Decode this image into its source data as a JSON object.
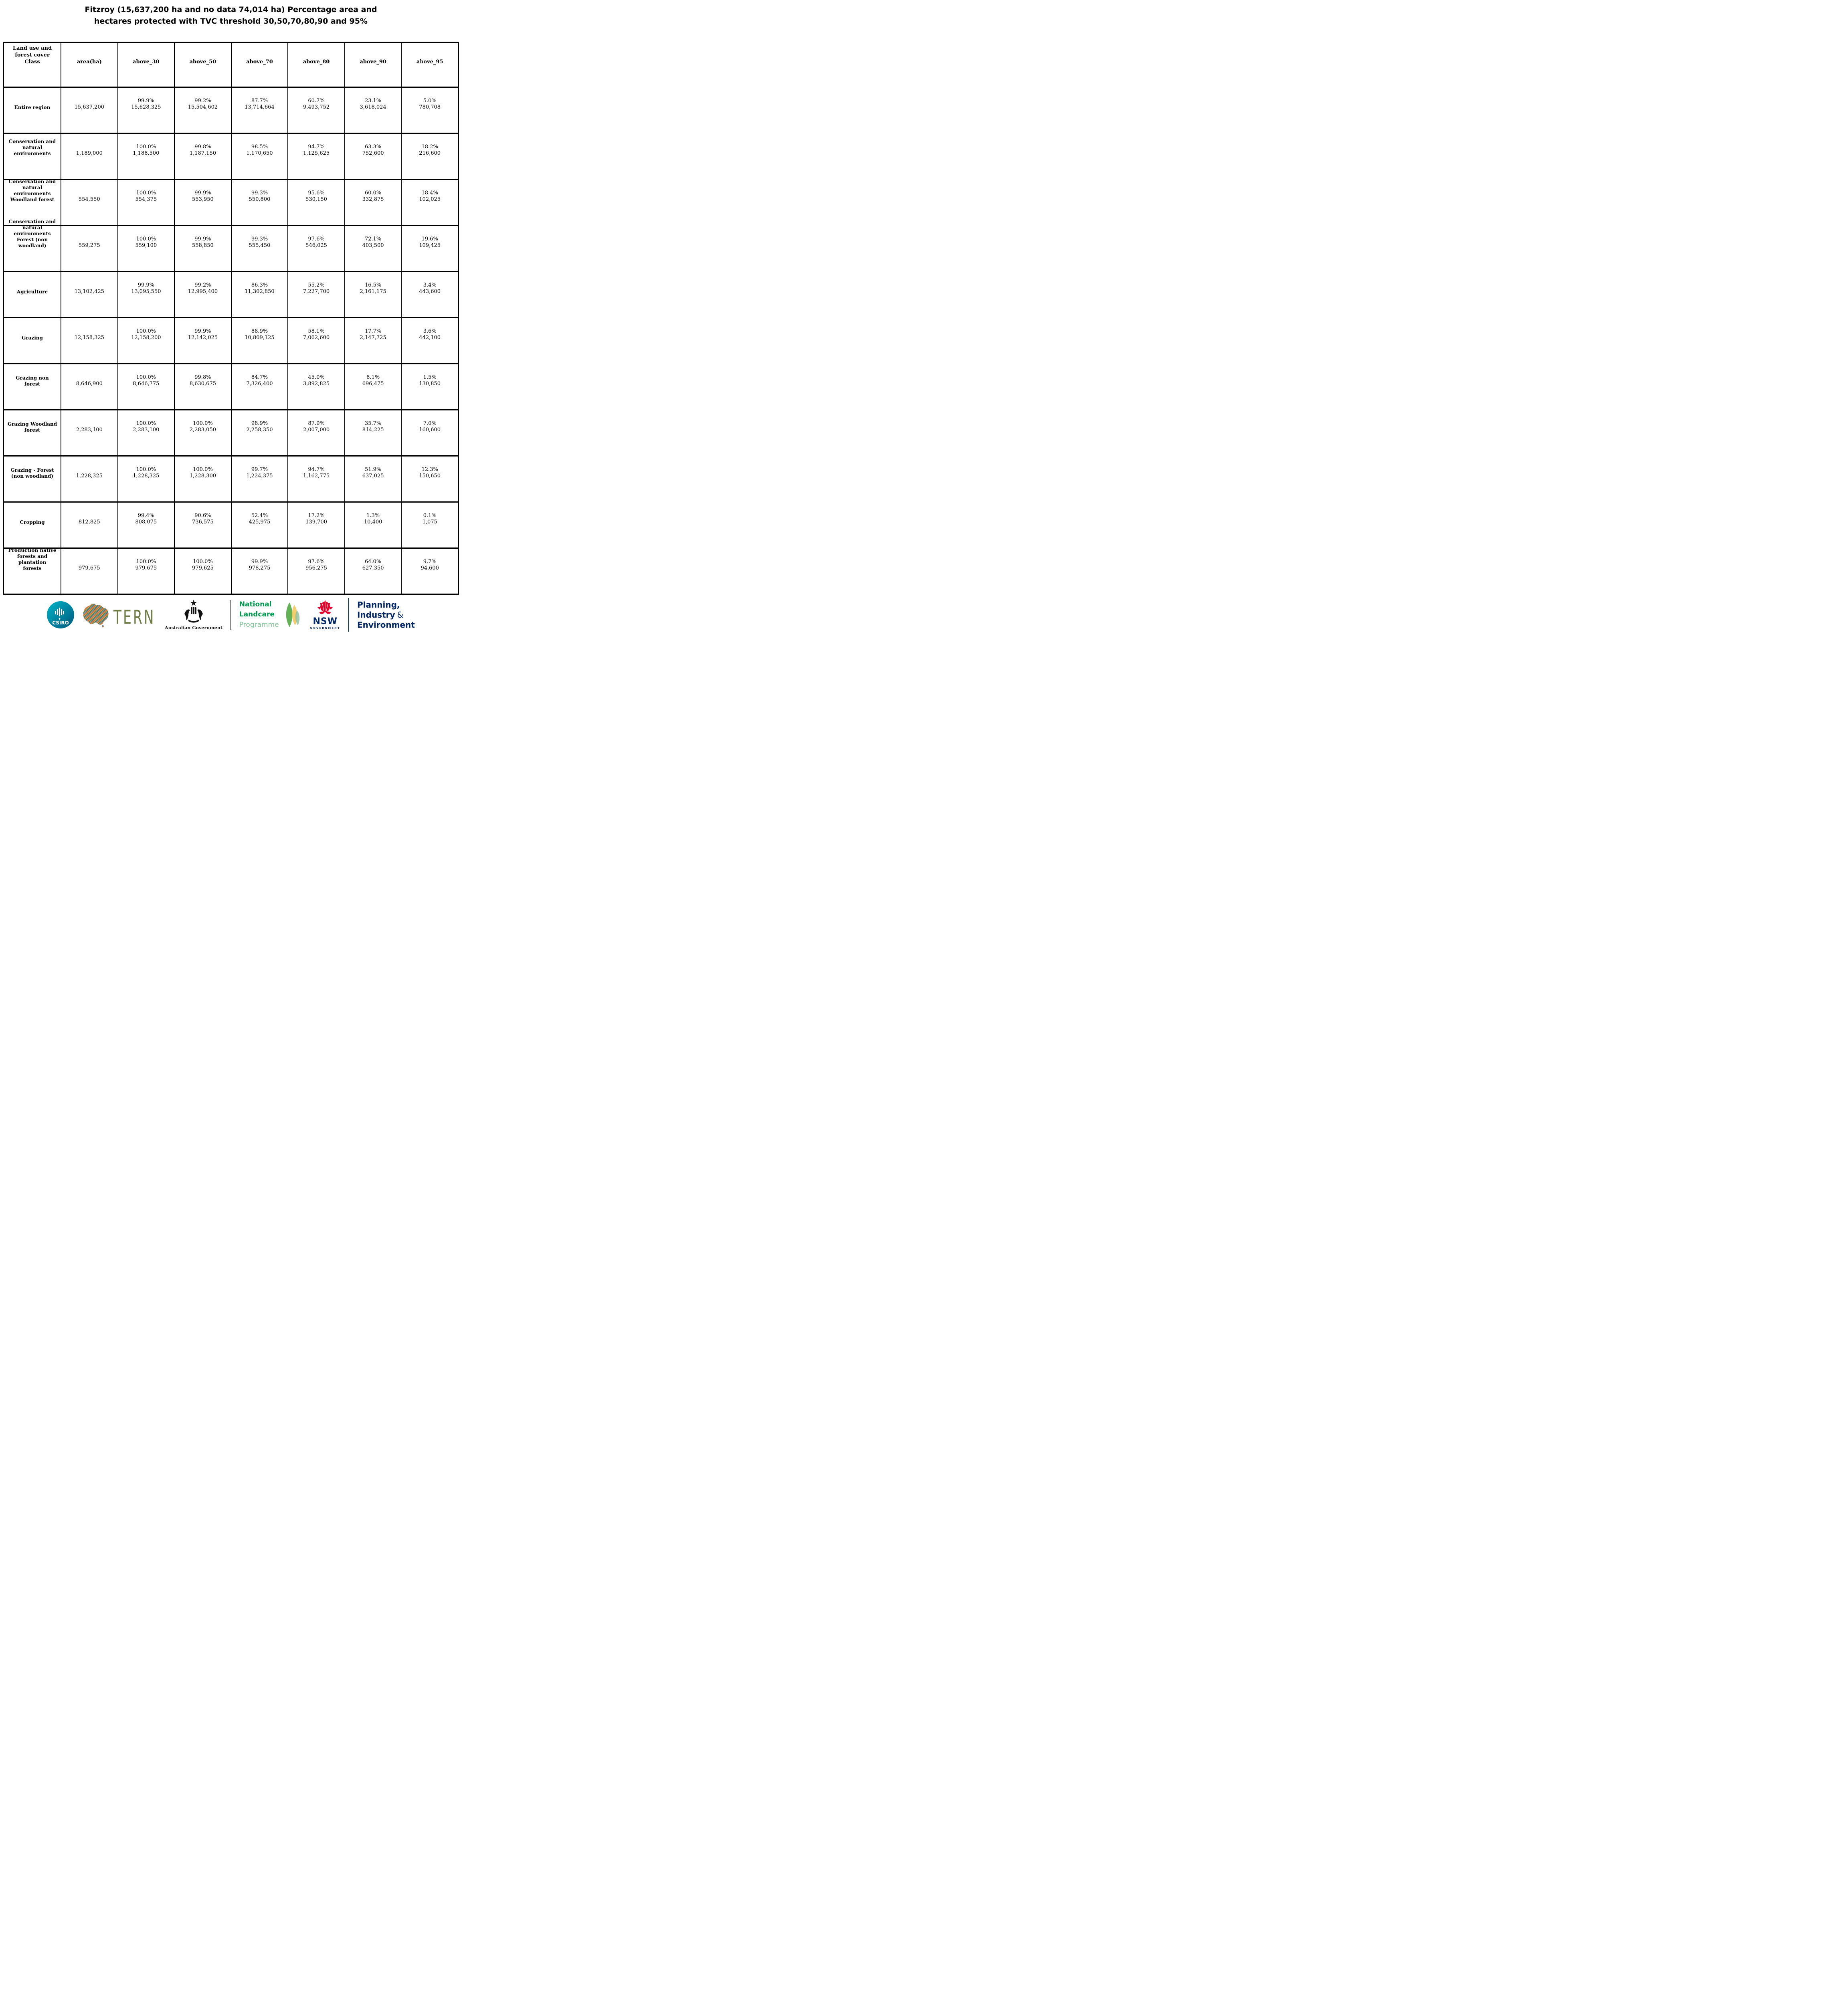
{
  "title": {
    "line1": "Fitzroy (15,637,200 ha and no data 74,014 ha) Percentage area and",
    "line2": "hectares protected with TVC threshold 30,50,70,80,90 and 95%"
  },
  "table": {
    "columns": [
      [
        "Land use and",
        "forest cover",
        "Class"
      ],
      [
        "area(ha)"
      ],
      [
        "above_30"
      ],
      [
        "above_50"
      ],
      [
        "above_70"
      ],
      [
        "above_80"
      ],
      [
        "above_90"
      ],
      [
        "above_95"
      ]
    ],
    "rows": [
      {
        "label_lines": [
          "Entire region"
        ],
        "area": "15,637,200",
        "pct": [
          "99.9%",
          "99.2%",
          "87.7%",
          "60.7%",
          "23.1%",
          "5.0%"
        ],
        "val": [
          "15,628,325",
          "15,504,602",
          "13,714,664",
          "9,493,752",
          "3,618,024",
          "780,708"
        ]
      },
      {
        "label_lines": [
          "Conservation and",
          "natural",
          "environments"
        ],
        "area": "1,189,000",
        "pct": [
          "100.0%",
          "99.8%",
          "98.5%",
          "94.7%",
          "63.3%",
          "18.2%"
        ],
        "val": [
          "1,188,500",
          "1,187,150",
          "1,170,650",
          "1,125,625",
          "752,600",
          "216,600"
        ]
      },
      {
        "label_lines": [
          "Conservation and",
          "natural",
          "environments",
          "Woodland forest"
        ],
        "area": "554,550",
        "pct": [
          "100.0%",
          "99.9%",
          "99.3%",
          "95.6%",
          "60.0%",
          "18.4%"
        ],
        "val": [
          "554,375",
          "553,950",
          "550,800",
          "530,150",
          "332,875",
          "102,025"
        ]
      },
      {
        "label_lines": [
          "Conservation and",
          "natural",
          "environments",
          "Forest (non",
          "woodland)"
        ],
        "area": "559,275",
        "pct": [
          "100.0%",
          "99.9%",
          "99.3%",
          "97.6%",
          "72.1%",
          "19.6%"
        ],
        "val": [
          "559,100",
          "558,850",
          "555,450",
          "546,025",
          "403,500",
          "109,425"
        ]
      },
      {
        "label_lines": [
          "Agriculture"
        ],
        "area": "13,102,425",
        "pct": [
          "99.9%",
          "99.2%",
          "86.3%",
          "55.2%",
          "16.5%",
          "3.4%"
        ],
        "val": [
          "13,095,550",
          "12,995,400",
          "11,302,850",
          "7,227,700",
          "2,161,175",
          "443,600"
        ]
      },
      {
        "label_lines": [
          "Grazing"
        ],
        "area": "12,158,325",
        "pct": [
          "100.0%",
          "99.9%",
          "88.9%",
          "58.1%",
          "17.7%",
          "3.6%"
        ],
        "val": [
          "12,158,200",
          "12,142,025",
          "10,809,125",
          "7,062,600",
          "2,147,725",
          "442,100"
        ]
      },
      {
        "label_lines": [
          "Grazing non",
          "forest"
        ],
        "area": "8,646,900",
        "pct": [
          "100.0%",
          "99.8%",
          "84.7%",
          "45.0%",
          "8.1%",
          "1.5%"
        ],
        "val": [
          "8,646,775",
          "8,630,675",
          "7,326,400",
          "3,892,825",
          "696,475",
          "130,850"
        ]
      },
      {
        "label_lines": [
          "Grazing Woodland",
          "forest"
        ],
        "area": "2,283,100",
        "pct": [
          "100.0%",
          "100.0%",
          "98.9%",
          "87.9%",
          "35.7%",
          "7.0%"
        ],
        "val": [
          "2,283,100",
          "2,283,050",
          "2,258,350",
          "2,007,000",
          "814,225",
          "160,600"
        ]
      },
      {
        "label_lines": [
          "Grazing - Forest",
          "(non woodland)"
        ],
        "area": "1,228,325",
        "pct": [
          "100.0%",
          "100.0%",
          "99.7%",
          "94.7%",
          "51.9%",
          "12.3%"
        ],
        "val": [
          "1,228,325",
          "1,228,300",
          "1,224,375",
          "1,162,775",
          "637,025",
          "150,650"
        ]
      },
      {
        "label_lines": [
          "Cropping"
        ],
        "area": "812,825",
        "pct": [
          "99.4%",
          "90.6%",
          "52.4%",
          "17.2%",
          "1.3%",
          "0.1%"
        ],
        "val": [
          "808,075",
          "736,575",
          "425,975",
          "139,700",
          "10,400",
          "1,075"
        ]
      },
      {
        "label_lines": [
          "Production native",
          "forests and",
          "plantation",
          "forests"
        ],
        "area": "979,675",
        "pct": [
          "100.0%",
          "100.0%",
          "99.9%",
          "97.6%",
          "64.0%",
          "9.7%"
        ],
        "val": [
          "979,675",
          "979,625",
          "978,275",
          "956,275",
          "627,350",
          "94,600"
        ]
      }
    ]
  },
  "footer": {
    "csiro_label": "CSIRO",
    "tern_label": "TERN",
    "ausgov_label": "Australian Government",
    "nlp_line1": "National",
    "nlp_line2": "Landcare",
    "nlp_line3": "Programme",
    "nsw_label": "NSW",
    "nsw_sub": "GOVERNMENT",
    "dept_line1": "Planning,",
    "dept_line2": "Industry",
    "dept_amp": "&",
    "dept_line3": "Environment"
  },
  "colors": {
    "nsw_navy": "#002664",
    "waratah_red": "#e4002b",
    "landcare_green": "#009a4e",
    "landcare_light": "#7dc695",
    "tern_olive": "#6e7b45",
    "csiro_teal": "#00b5c8",
    "csiro_deep": "#00587c",
    "crest_black": "#111111"
  }
}
